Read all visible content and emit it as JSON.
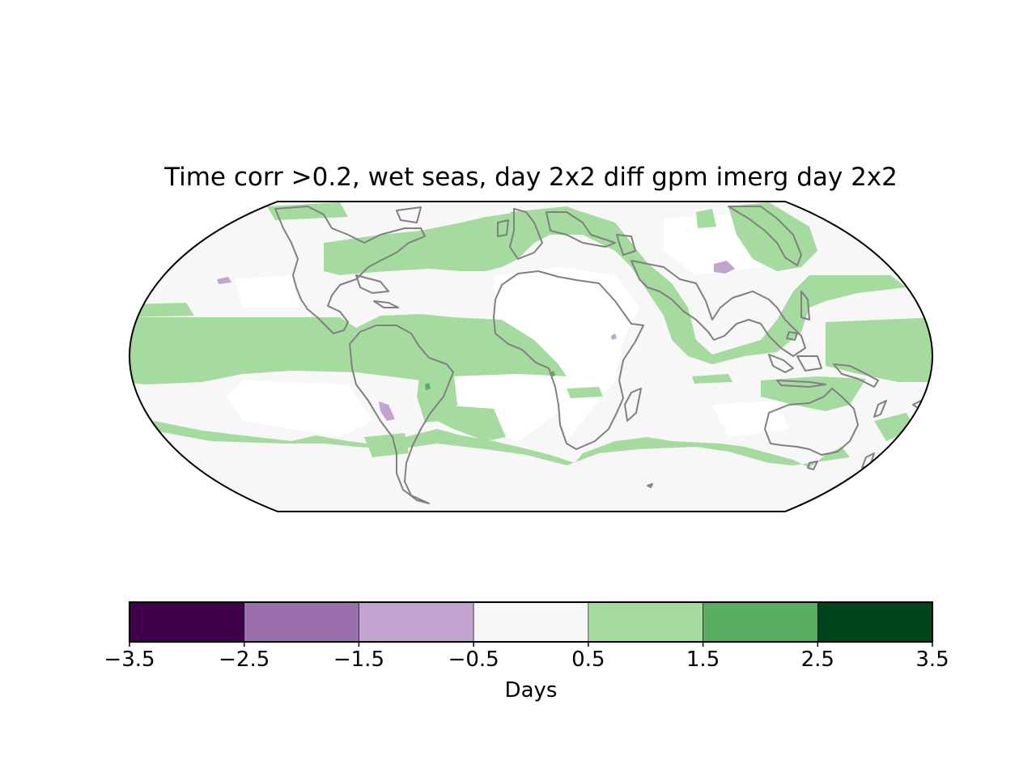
{
  "title": "Time corr >0.2, wet seas, day 2x2 diff gpm imerg day 2x2",
  "colors": {
    "ocean_background": "#f7f7f7",
    "near_zero": "#ffffff",
    "light_green": "#a6dba0",
    "coast": "#808080",
    "purple_light": "#c2a5cf"
  },
  "colorbar": {
    "label": "Days",
    "boundaries": [
      -3.5,
      -2.5,
      -1.5,
      -0.5,
      0.5,
      1.5,
      2.5,
      3.5
    ],
    "tick_labels": [
      "−3.5",
      "−2.5",
      "−1.5",
      "−0.5",
      "0.5",
      "1.5",
      "2.5",
      "3.5"
    ],
    "colors": [
      "#40004b",
      "#9970ab",
      "#c2a5cf",
      "#f7f7f7",
      "#a6dba0",
      "#5aae61",
      "#00441b"
    ]
  }
}
